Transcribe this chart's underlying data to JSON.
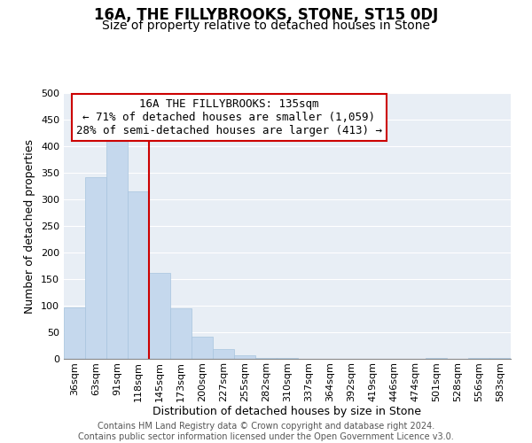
{
  "title": "16A, THE FILLYBROOKS, STONE, ST15 0DJ",
  "subtitle": "Size of property relative to detached houses in Stone",
  "xlabel": "Distribution of detached houses by size in Stone",
  "ylabel": "Number of detached properties",
  "categories": [
    "36sqm",
    "63sqm",
    "91sqm",
    "118sqm",
    "145sqm",
    "173sqm",
    "200sqm",
    "227sqm",
    "255sqm",
    "282sqm",
    "310sqm",
    "337sqm",
    "364sqm",
    "392sqm",
    "419sqm",
    "446sqm",
    "474sqm",
    "501sqm",
    "528sqm",
    "556sqm",
    "583sqm"
  ],
  "values": [
    97,
    342,
    413,
    315,
    162,
    95,
    42,
    19,
    7,
    2,
    2,
    0,
    0,
    0,
    0,
    0,
    0,
    2,
    0,
    2,
    2
  ],
  "bar_color": "#c5d8ed",
  "bar_edge_color": "#a8c4de",
  "vline_color": "#cc0000",
  "annotation_text": "16A THE FILLYBROOKS: 135sqm\n← 71% of detached houses are smaller (1,059)\n28% of semi-detached houses are larger (413) →",
  "annotation_box_color": "#ffffff",
  "annotation_box_edge_color": "#cc0000",
  "ylim": [
    0,
    500
  ],
  "footer_line1": "Contains HM Land Registry data © Crown copyright and database right 2024.",
  "footer_line2": "Contains public sector information licensed under the Open Government Licence v3.0.",
  "background_color": "#ffffff",
  "plot_bg_color": "#e8eef5",
  "grid_color": "#ffffff",
  "title_fontsize": 12,
  "subtitle_fontsize": 10,
  "axis_label_fontsize": 9,
  "tick_fontsize": 8,
  "annotation_fontsize": 9,
  "footer_fontsize": 7
}
